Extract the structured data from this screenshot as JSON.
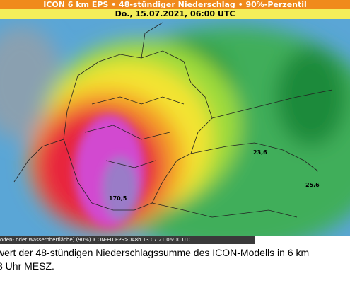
{
  "header": {
    "title": "ICON 6 km EPS • 48-stündiger Niederschlag • 90%-Perzentil",
    "subtitle": "Do., 15.07.2021, 06:00 UTC"
  },
  "map": {
    "labels": [
      "23,6",
      "25,6",
      "170,5"
    ],
    "footer": "oden- oder Wasseroberfläche] (90%) ICON-EU EPS>048h  13.07.21 06:00 UTC"
  },
  "caption": {
    "lines": [
      "wert der 48-stündigen Niederschlagssumme des ICON-Modells in 6 km",
      " 8 Uhr MESZ."
    ]
  }
}
